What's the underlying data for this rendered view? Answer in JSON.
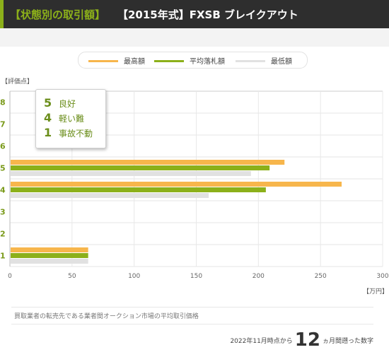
{
  "header": {
    "tag": "【状態別の取引額】",
    "title": "【2015年式】FXSB ブレイクアウト"
  },
  "legend": {
    "items": [
      {
        "label": "最高額",
        "color": "#f7b64c"
      },
      {
        "label": "平均落札額",
        "color": "#8cb01a"
      },
      {
        "label": "最低額",
        "color": "#e1e1e1"
      }
    ]
  },
  "chart_data": {
    "type": "bar",
    "orientation": "horizontal",
    "ylabel": "【評価点】",
    "xunit": "【万円】",
    "categories": [
      "8",
      "7",
      "6",
      "5",
      "4",
      "3",
      "2",
      "1"
    ],
    "series": [
      {
        "name": "最高額",
        "color": "#f7b64c",
        "values": [
          null,
          null,
          null,
          221,
          267,
          null,
          null,
          63
        ]
      },
      {
        "name": "平均落札額",
        "color": "#8cb01a",
        "values": [
          null,
          null,
          null,
          209,
          206,
          null,
          null,
          63
        ]
      },
      {
        "name": "最低額",
        "color": "#e1e1e1",
        "values": [
          null,
          null,
          null,
          194,
          160,
          null,
          null,
          63
        ]
      }
    ],
    "xlim": [
      0,
      300
    ],
    "xticks": [
      0,
      50,
      100,
      150,
      200,
      250,
      300
    ],
    "grid": true,
    "legend_position": "top"
  },
  "key": {
    "rows": [
      {
        "num": "5",
        "text": "良好"
      },
      {
        "num": "4",
        "text": "軽い難"
      },
      {
        "num": "1",
        "text": "事故不動"
      }
    ]
  },
  "note": "買取業者の転売先である業者間オークション市場の平均取引価格",
  "footer": {
    "prefix": "2022年11月時点から",
    "number": "12",
    "suffix": "ヵ月間遡った数字"
  }
}
